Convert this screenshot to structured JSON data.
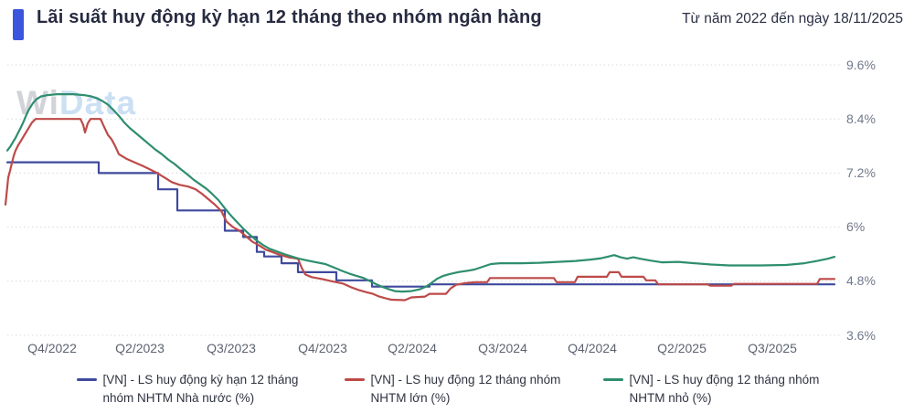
{
  "watermark": {
    "part1": "Wi",
    "part2": "Data"
  },
  "chart_data": {
    "type": "line",
    "title": "Lãi suất huy động kỳ hạn 12 tháng theo nhóm ngân hàng",
    "subtitle": "Từ năm 2022 đến ngày 18/11/2025",
    "accent_color": "#3b55dd",
    "grid": "horizontal-dotted",
    "legend_position": "bottom",
    "ylim": [
      3.6,
      9.6
    ],
    "y_ticks": [
      "9.6%",
      "8.4%",
      "7.2%",
      "6%",
      "4.8%",
      "3.6%"
    ],
    "y_tick_values": [
      9.6,
      8.4,
      7.2,
      6,
      4.8,
      3.6
    ],
    "x_ticks": [
      "Q4/2022",
      "Q2/2023",
      "Q3/2023",
      "Q4/2023",
      "Q2/2024",
      "Q3/2024",
      "Q4/2024",
      "Q2/2025",
      "Q3/2025"
    ],
    "unit": "%",
    "series": [
      {
        "name": "[VN] - LS huy động kỳ hạn 12 tháng nhóm NHTM Nhà nước (%)",
        "color": "#3e4a9d",
        "points": [
          [
            8,
            7.44
          ],
          [
            108,
            7.44
          ],
          [
            108,
            7.2
          ],
          [
            173,
            7.2
          ],
          [
            173,
            6.84
          ],
          [
            194,
            6.84
          ],
          [
            194,
            6.37
          ],
          [
            246,
            6.37
          ],
          [
            246,
            5.92
          ],
          [
            266,
            5.92
          ],
          [
            266,
            5.78
          ],
          [
            281,
            5.78
          ],
          [
            281,
            5.45
          ],
          [
            289,
            5.45
          ],
          [
            289,
            5.35
          ],
          [
            308,
            5.35
          ],
          [
            308,
            5.2
          ],
          [
            326,
            5.2
          ],
          [
            326,
            5.0
          ],
          [
            368,
            5.0
          ],
          [
            368,
            4.82
          ],
          [
            407,
            4.82
          ],
          [
            407,
            4.68
          ],
          [
            470,
            4.68
          ],
          [
            470,
            4.73
          ],
          [
            913,
            4.73
          ]
        ]
      },
      {
        "name": "[VN] - LS huy động 12 tháng nhóm NHTM lớn (%)",
        "color": "#bd4a48",
        "points": [
          [
            6,
            6.5
          ],
          [
            8,
            6.9
          ],
          [
            9,
            7.1
          ],
          [
            11,
            7.25
          ],
          [
            13,
            7.42
          ],
          [
            15,
            7.58
          ],
          [
            17,
            7.7
          ],
          [
            20,
            7.82
          ],
          [
            23,
            7.92
          ],
          [
            26,
            8.02
          ],
          [
            29,
            8.12
          ],
          [
            32,
            8.22
          ],
          [
            35,
            8.32
          ],
          [
            39,
            8.4
          ],
          [
            88,
            8.4
          ],
          [
            91,
            8.27
          ],
          [
            93,
            8.1
          ],
          [
            96,
            8.3
          ],
          [
            99,
            8.4
          ],
          [
            110,
            8.4
          ],
          [
            114,
            8.22
          ],
          [
            118,
            8.05
          ],
          [
            122,
            7.95
          ],
          [
            126,
            7.8
          ],
          [
            130,
            7.62
          ],
          [
            138,
            7.52
          ],
          [
            147,
            7.44
          ],
          [
            156,
            7.36
          ],
          [
            164,
            7.28
          ],
          [
            172,
            7.2
          ],
          [
            180,
            7.1
          ],
          [
            188,
            7.0
          ],
          [
            196,
            6.94
          ],
          [
            206,
            6.9
          ],
          [
            214,
            6.84
          ],
          [
            221,
            6.74
          ],
          [
            228,
            6.62
          ],
          [
            235,
            6.5
          ],
          [
            242,
            6.36
          ],
          [
            248,
            6.12
          ],
          [
            255,
            6.0
          ],
          [
            262,
            5.92
          ],
          [
            269,
            5.8
          ],
          [
            276,
            5.68
          ],
          [
            283,
            5.6
          ],
          [
            291,
            5.5
          ],
          [
            299,
            5.44
          ],
          [
            307,
            5.38
          ],
          [
            316,
            5.33
          ],
          [
            326,
            5.3
          ],
          [
            330,
            5.1
          ],
          [
            334,
            4.95
          ],
          [
            341,
            4.89
          ],
          [
            352,
            4.85
          ],
          [
            363,
            4.8
          ],
          [
            375,
            4.75
          ],
          [
            385,
            4.66
          ],
          [
            393,
            4.6
          ],
          [
            400,
            4.56
          ],
          [
            408,
            4.52
          ],
          [
            415,
            4.46
          ],
          [
            422,
            4.42
          ],
          [
            428,
            4.39
          ],
          [
            443,
            4.38
          ],
          [
            450,
            4.44
          ],
          [
            465,
            4.46
          ],
          [
            470,
            4.52
          ],
          [
            488,
            4.52
          ],
          [
            493,
            4.64
          ],
          [
            499,
            4.72
          ],
          [
            509,
            4.76
          ],
          [
            520,
            4.78
          ],
          [
            533,
            4.78
          ],
          [
            536,
            4.87
          ],
          [
            606,
            4.87
          ],
          [
            609,
            4.78
          ],
          [
            629,
            4.78
          ],
          [
            632,
            4.9
          ],
          [
            664,
            4.9
          ],
          [
            667,
            5.0
          ],
          [
            677,
            5.0
          ],
          [
            680,
            4.9
          ],
          [
            704,
            4.9
          ],
          [
            707,
            4.82
          ],
          [
            717,
            4.82
          ],
          [
            720,
            4.73
          ],
          [
            774,
            4.73
          ],
          [
            777,
            4.7
          ],
          [
            800,
            4.7
          ],
          [
            803,
            4.74
          ],
          [
            894,
            4.74
          ],
          [
            897,
            4.85
          ],
          [
            913,
            4.85
          ]
        ]
      },
      {
        "name": "[VN] - LS huy động 12 tháng nhóm NHTM nhỏ (%)",
        "color": "#2e8e6e",
        "points": [
          [
            8,
            7.7
          ],
          [
            11,
            7.78
          ],
          [
            14,
            7.88
          ],
          [
            17,
            7.98
          ],
          [
            20,
            8.1
          ],
          [
            23,
            8.22
          ],
          [
            26,
            8.35
          ],
          [
            29,
            8.5
          ],
          [
            32,
            8.62
          ],
          [
            36,
            8.75
          ],
          [
            40,
            8.84
          ],
          [
            45,
            8.9
          ],
          [
            52,
            8.93
          ],
          [
            62,
            8.95
          ],
          [
            80,
            8.95
          ],
          [
            92,
            8.93
          ],
          [
            100,
            8.9
          ],
          [
            106,
            8.86
          ],
          [
            112,
            8.8
          ],
          [
            118,
            8.72
          ],
          [
            124,
            8.6
          ],
          [
            130,
            8.47
          ],
          [
            136,
            8.32
          ],
          [
            142,
            8.2
          ],
          [
            149,
            8.08
          ],
          [
            156,
            7.96
          ],
          [
            163,
            7.84
          ],
          [
            170,
            7.72
          ],
          [
            177,
            7.62
          ],
          [
            184,
            7.5
          ],
          [
            191,
            7.4
          ],
          [
            198,
            7.28
          ],
          [
            205,
            7.17
          ],
          [
            212,
            7.05
          ],
          [
            219,
            6.95
          ],
          [
            226,
            6.85
          ],
          [
            232,
            6.74
          ],
          [
            239,
            6.6
          ],
          [
            246,
            6.42
          ],
          [
            253,
            6.25
          ],
          [
            260,
            6.1
          ],
          [
            267,
            5.95
          ],
          [
            274,
            5.82
          ],
          [
            281,
            5.7
          ],
          [
            288,
            5.6
          ],
          [
            295,
            5.52
          ],
          [
            303,
            5.46
          ],
          [
            311,
            5.4
          ],
          [
            319,
            5.35
          ],
          [
            327,
            5.3
          ],
          [
            336,
            5.26
          ],
          [
            346,
            5.22
          ],
          [
            356,
            5.18
          ],
          [
            366,
            5.1
          ],
          [
            374,
            5.03
          ],
          [
            382,
            4.97
          ],
          [
            390,
            4.92
          ],
          [
            398,
            4.87
          ],
          [
            405,
            4.8
          ],
          [
            412,
            4.73
          ],
          [
            419,
            4.67
          ],
          [
            426,
            4.62
          ],
          [
            432,
            4.58
          ],
          [
            440,
            4.57
          ],
          [
            450,
            4.58
          ],
          [
            459,
            4.62
          ],
          [
            466,
            4.68
          ],
          [
            472,
            4.76
          ],
          [
            478,
            4.85
          ],
          [
            485,
            4.92
          ],
          [
            492,
            4.96
          ],
          [
            501,
            5.0
          ],
          [
            511,
            5.03
          ],
          [
            519,
            5.06
          ],
          [
            528,
            5.12
          ],
          [
            537,
            5.18
          ],
          [
            547,
            5.2
          ],
          [
            570,
            5.2
          ],
          [
            590,
            5.21
          ],
          [
            610,
            5.23
          ],
          [
            630,
            5.25
          ],
          [
            646,
            5.28
          ],
          [
            658,
            5.31
          ],
          [
            666,
            5.35
          ],
          [
            672,
            5.38
          ],
          [
            679,
            5.33
          ],
          [
            686,
            5.3
          ],
          [
            693,
            5.33
          ],
          [
            700,
            5.3
          ],
          [
            711,
            5.26
          ],
          [
            724,
            5.22
          ],
          [
            742,
            5.23
          ],
          [
            760,
            5.2
          ],
          [
            778,
            5.17
          ],
          [
            798,
            5.15
          ],
          [
            832,
            5.15
          ],
          [
            860,
            5.16
          ],
          [
            880,
            5.2
          ],
          [
            894,
            5.25
          ],
          [
            906,
            5.3
          ],
          [
            913,
            5.34
          ]
        ]
      }
    ]
  }
}
